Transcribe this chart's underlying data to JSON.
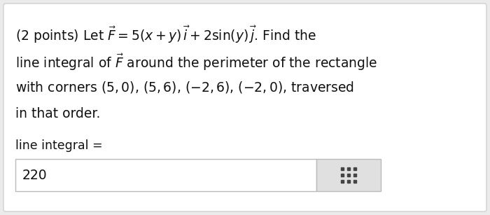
{
  "background_color": "#ebebeb",
  "card_color": "#ffffff",
  "card_border": "#d0d0d0",
  "text_color": "#111111",
  "label_color": "#333333",
  "answer_box_color": "#ffffff",
  "answer_box_border": "#bbbbbb",
  "grid_box_color": "#e0e0e0",
  "grid_dot_color": "#444444",
  "font_size_main": 13.5,
  "font_size_label": 12.5,
  "font_size_answer": 13.5,
  "line1": "(2 points) Let $\\vec{F} = 5(x + y)\\, \\vec{i} + 2\\sin(y)\\, \\vec{j}$. Find the",
  "line2": "line integral of $\\vec{F}$ around the perimeter of the rectangle",
  "line3": "with corners $(5, 0)$, $(5, 6)$, $(-2, 6)$, $(-2, 0)$, traversed",
  "line4": "in that order.",
  "label": "line integral =",
  "answer": "220"
}
